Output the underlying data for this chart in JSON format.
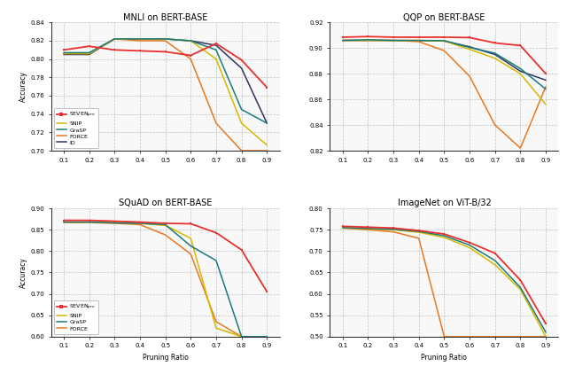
{
  "pruning_ratios": [
    0.1,
    0.2,
    0.3,
    0.4,
    0.5,
    0.6,
    0.7,
    0.8,
    0.9
  ],
  "mnli": {
    "title": "MNLI on BERT-BASE",
    "ylabel": "Accuracy",
    "ylim": [
      0.7,
      0.84
    ],
    "yticks": [
      0.7,
      0.72,
      0.74,
      0.76,
      0.78,
      0.8,
      0.82,
      0.84
    ],
    "SEVEN": [
      0.81,
      0.814,
      0.81,
      0.809,
      0.808,
      0.804,
      0.817,
      0.799,
      0.769
    ],
    "SNIP": [
      0.806,
      0.806,
      0.822,
      0.822,
      0.822,
      0.82,
      0.8,
      0.73,
      0.706
    ],
    "GraSP": [
      0.807,
      0.807,
      0.822,
      0.822,
      0.822,
      0.82,
      0.81,
      0.745,
      0.73
    ],
    "FORCE": [
      0.806,
      0.806,
      0.822,
      0.82,
      0.82,
      0.8,
      0.73,
      0.7,
      0.7
    ],
    "ID": [
      0.805,
      0.805,
      0.822,
      0.822,
      0.822,
      0.82,
      0.815,
      0.79,
      0.73
    ],
    "has_ID": true
  },
  "qqp": {
    "title": "QQP on BERT-BASE",
    "ylabel": "",
    "ylim": [
      0.82,
      0.92
    ],
    "yticks": [
      0.82,
      0.84,
      0.86,
      0.88,
      0.9,
      0.92
    ],
    "SEVEN": [
      0.9085,
      0.909,
      0.9085,
      0.9085,
      0.9085,
      0.9082,
      0.904,
      0.902,
      0.88
    ],
    "SNIP": [
      0.906,
      0.906,
      0.906,
      0.906,
      0.9055,
      0.899,
      0.892,
      0.88,
      0.856
    ],
    "GraSP": [
      0.906,
      0.9065,
      0.906,
      0.906,
      0.9058,
      0.9005,
      0.896,
      0.884,
      0.868
    ],
    "FORCE": [
      0.906,
      0.906,
      0.906,
      0.905,
      0.898,
      0.878,
      0.84,
      0.822,
      0.87
    ],
    "ID": [
      0.906,
      0.906,
      0.906,
      0.9058,
      0.9055,
      0.901,
      0.895,
      0.882,
      0.875
    ],
    "has_ID": true
  },
  "squad": {
    "title": "SQuAD on BERT-BASE",
    "ylabel": "Accuracy",
    "ylim": [
      0.6,
      0.9
    ],
    "yticks": [
      0.6,
      0.65,
      0.7,
      0.75,
      0.8,
      0.85,
      0.9
    ],
    "SEVEN": [
      0.872,
      0.872,
      0.87,
      0.868,
      0.865,
      0.864,
      0.843,
      0.803,
      0.705
    ],
    "SNIP": [
      0.868,
      0.868,
      0.867,
      0.865,
      0.86,
      0.83,
      0.62,
      0.6,
      0.6
    ],
    "GraSP": [
      0.868,
      0.868,
      0.866,
      0.865,
      0.862,
      0.812,
      0.778,
      0.6,
      0.6
    ],
    "FORCE": [
      0.867,
      0.867,
      0.865,
      0.862,
      0.838,
      0.793,
      0.635,
      0.6,
      0.6
    ],
    "has_ID": false
  },
  "imagenet": {
    "title": "ImageNet on ViT-B/32",
    "ylabel": "",
    "ylim": [
      0.5,
      0.8
    ],
    "yticks": [
      0.5,
      0.55,
      0.6,
      0.65,
      0.7,
      0.75,
      0.8
    ],
    "SEVEN": [
      0.758,
      0.756,
      0.754,
      0.748,
      0.74,
      0.72,
      0.695,
      0.632,
      0.53
    ],
    "SNIP": [
      0.754,
      0.752,
      0.75,
      0.744,
      0.732,
      0.708,
      0.668,
      0.61,
      0.5
    ],
    "GraSP": [
      0.755,
      0.753,
      0.751,
      0.746,
      0.736,
      0.714,
      0.678,
      0.615,
      0.51
    ],
    "FORCE": [
      0.754,
      0.75,
      0.745,
      0.73,
      0.5,
      0.5,
      0.5,
      0.5,
      0.5
    ],
    "has_ID": false
  },
  "colors": {
    "SEVEN": "#e8302e",
    "SNIP": "#d4b800",
    "GraSP": "#1a7a7a",
    "FORCE": "#e87820",
    "ID": "#2a3560"
  },
  "xlabel_bottom": "Pruning Ratio",
  "background": "#f8f8f8"
}
